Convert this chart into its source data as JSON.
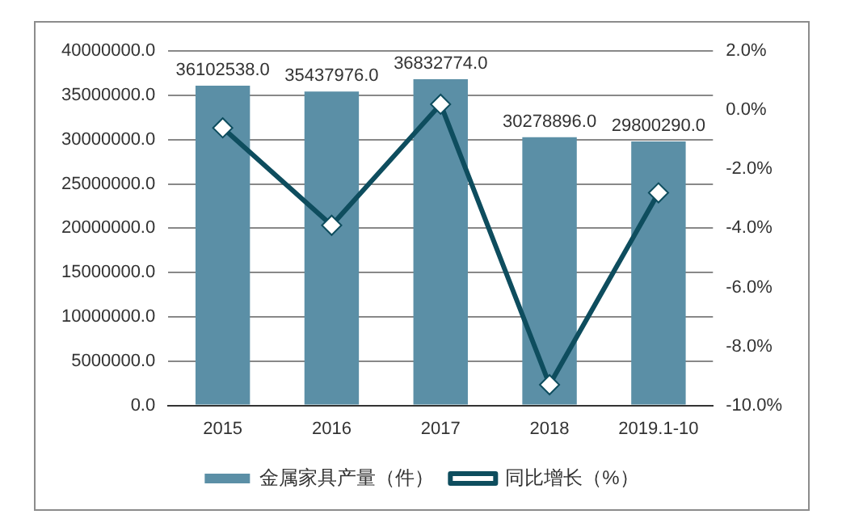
{
  "chart_data": {
    "type": "bar",
    "categories": [
      "2015",
      "2016",
      "2017",
      "2018",
      "2019.1-10"
    ],
    "series": [
      {
        "name": "金属家具产量（件）",
        "color": "#5b8fa6",
        "values": [
          36102538.0,
          35437976.0,
          36832774.0,
          30278896.0,
          29800290.0
        ],
        "value_labels": [
          "36102538.0",
          "35437976.0",
          "36832774.0",
          "30278896.0",
          "29800290.0"
        ]
      },
      {
        "name": "同比增长（%）",
        "type": "line",
        "axis": "y2",
        "color": "#0e4d5e",
        "marker": "diamond",
        "values": [
          -0.6,
          -3.9,
          0.2,
          -9.3,
          -2.8
        ]
      }
    ],
    "ylim": [
      0,
      40000000
    ],
    "yticks": [
      {
        "value": 0,
        "label": "0.0"
      },
      {
        "value": 5000000,
        "label": "5000000.0"
      },
      {
        "value": 10000000,
        "label": "10000000.0"
      },
      {
        "value": 15000000,
        "label": "15000000.0"
      },
      {
        "value": 20000000,
        "label": "20000000.0"
      },
      {
        "value": 25000000,
        "label": "25000000.0"
      },
      {
        "value": 30000000,
        "label": "30000000.0"
      },
      {
        "value": 35000000,
        "label": "35000000.0"
      },
      {
        "value": 40000000,
        "label": "40000000.0"
      }
    ],
    "y2lim": [
      -10,
      2
    ],
    "y2ticks": [
      {
        "value": -10,
        "label": "-10.0%"
      },
      {
        "value": -8,
        "label": "-8.0%"
      },
      {
        "value": -6,
        "label": "-6.0%"
      },
      {
        "value": -4,
        "label": "-4.0%"
      },
      {
        "value": -2,
        "label": "-2.0%"
      },
      {
        "value": 0,
        "label": "0.0%"
      },
      {
        "value": 2,
        "label": "2.0%"
      }
    ],
    "grid": "y",
    "legend": "bottom"
  }
}
